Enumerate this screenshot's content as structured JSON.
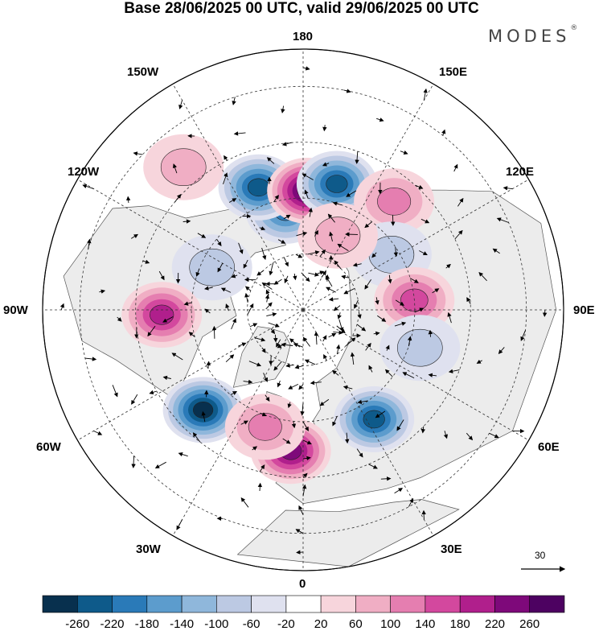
{
  "title": "Base 28/06/2025 00 UTC, valid 29/06/2025 00 UTC",
  "brand": "MODES",
  "brand_mark": "®",
  "lon_labels": {
    "n180": "180",
    "w150": "150W",
    "e150": "150E",
    "w120": "120W",
    "e120": "120E",
    "w90": "90W",
    "e90": "90E",
    "w60": "60W",
    "e60": "60E",
    "w30": "30W",
    "e30": "30E",
    "s0": "0"
  },
  "wind_reference": "30",
  "colorbar": {
    "tick_labels": [
      "-260",
      "-220",
      "-180",
      "-140",
      "-100",
      "-60",
      "-20",
      "20",
      "60",
      "100",
      "140",
      "180",
      "220",
      "260"
    ],
    "colors": [
      "#08304e",
      "#0e5a8a",
      "#2a7ab8",
      "#5c9ccd",
      "#8fb7db",
      "#bcc9e3",
      "#dfe1ef",
      "#ffffff",
      "#f7d5dc",
      "#f0aec4",
      "#e57eb0",
      "#d3489e",
      "#b01f8c",
      "#7e097a",
      "#4d0261"
    ]
  },
  "anomalies": [
    {
      "kind": "neg",
      "lat": 63,
      "lon": -170,
      "level": 0.7
    },
    {
      "kind": "neg",
      "lat": 55,
      "lon": -160,
      "level": 0.8
    },
    {
      "kind": "pos",
      "lat": 58,
      "lon": 178,
      "level": 1.0
    },
    {
      "kind": "neg",
      "lat": 55,
      "lon": 165,
      "level": 0.8
    },
    {
      "kind": "pos",
      "lat": 52,
      "lon": 140,
      "level": 0.4
    },
    {
      "kind": "neg",
      "lat": 62,
      "lon": 122,
      "level": 0.3
    },
    {
      "kind": "neg",
      "lat": 63,
      "lon": -115,
      "level": 0.35
    },
    {
      "kind": "pos",
      "lat": 60,
      "lon": 95,
      "level": 0.6
    },
    {
      "kind": "pos",
      "lat": 52,
      "lon": -88,
      "level": 0.7
    },
    {
      "kind": "neg",
      "lat": 52,
      "lon": -45,
      "level": 1.0
    },
    {
      "kind": "pos",
      "lat": 52,
      "lon": -5,
      "level": 0.8
    },
    {
      "kind": "pos",
      "lat": 57,
      "lon": -18,
      "level": 0.4
    },
    {
      "kind": "neg",
      "lat": 55,
      "lon": 33,
      "level": 0.9
    },
    {
      "kind": "neg",
      "lat": 57,
      "lon": 72,
      "level": 0.3
    },
    {
      "kind": "pos",
      "lat": 68,
      "lon": 155,
      "level": 0.3
    },
    {
      "kind": "pos",
      "lat": 40,
      "lon": -140,
      "level": 0.3
    }
  ]
}
